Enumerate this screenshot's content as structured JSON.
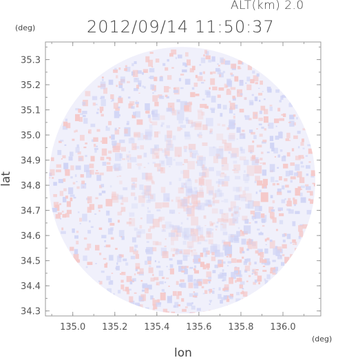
{
  "header": {
    "altitude_label": "ALT(km) 2.0",
    "timestamp": "2012/09/14 11:50:37"
  },
  "axes": {
    "y_unit": "(deg)",
    "x_unit": "(deg)",
    "y_label": "lat",
    "x_label": "lon",
    "y_ticks": [
      "35.3",
      "35.2",
      "35.1",
      "35.0",
      "34.9",
      "34.8",
      "34.7",
      "34.6",
      "34.5",
      "34.4",
      "34.3"
    ],
    "x_ticks": [
      "135.0",
      "135.2",
      "135.4",
      "135.6",
      "135.8",
      "136.0"
    ]
  },
  "map": {
    "lat_range": [
      34.28,
      35.37
    ],
    "lon_range": [
      134.87,
      136.18
    ],
    "center": {
      "lon": 135.52,
      "lat": 34.82
    },
    "radius_deg_lat": 0.53,
    "colors": {
      "positive": "#f5c8c8",
      "negative": "#d0d4f5",
      "background": "#f0f0fb",
      "frame": "#9a9a9a"
    }
  }
}
